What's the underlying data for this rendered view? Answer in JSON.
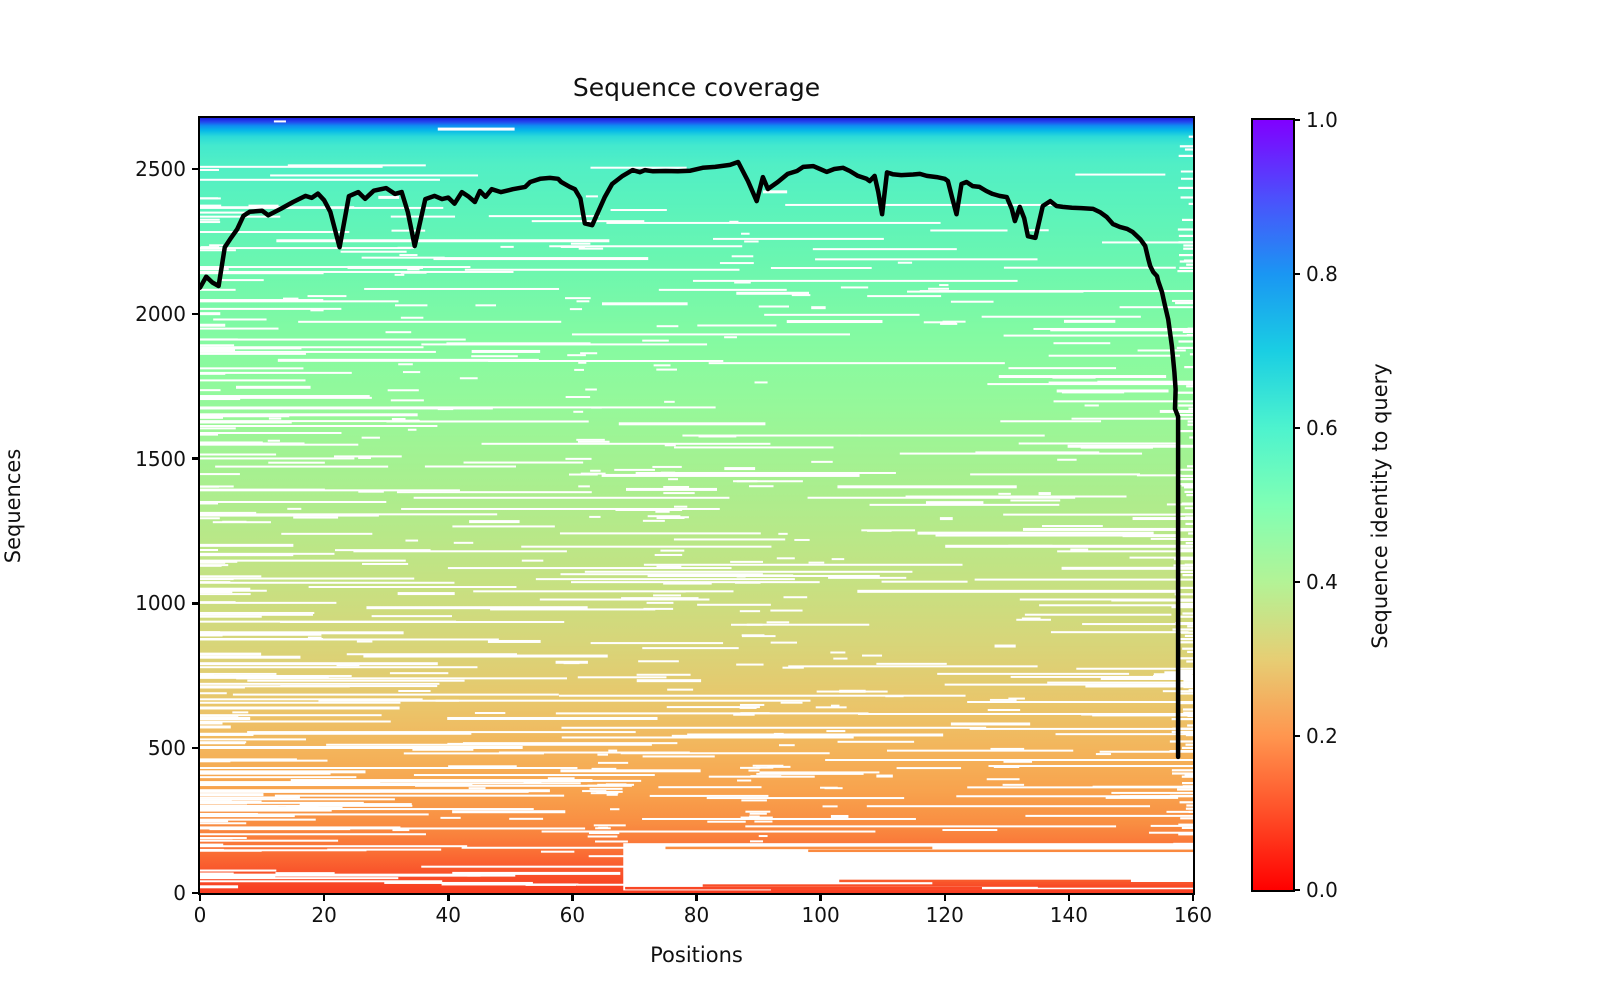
{
  "chart_data": {
    "type": "heatmap",
    "title": "Sequence coverage",
    "xlabel": "Positions",
    "ylabel": "Sequences",
    "xlim": [
      0,
      160
    ],
    "ylim": [
      0,
      2676
    ],
    "x_ticks": [
      0,
      20,
      40,
      60,
      80,
      100,
      120,
      140,
      160
    ],
    "y_ticks": [
      0,
      500,
      1000,
      1500,
      2000,
      2500
    ],
    "grid": false,
    "description": "MSA sequence coverage plot: heatmap rows are aligned sequences sorted by identity to query (rainbow colormap), white = no coverage; black line = number of sequences covering each position.",
    "heatmap_gradient_stops": [
      [
        0.0,
        "#1a1ae0"
      ],
      [
        0.005,
        "#2448ee"
      ],
      [
        0.01,
        "#0f8df2"
      ],
      [
        0.016,
        "#06b8e8"
      ],
      [
        0.024,
        "#2cdbd8"
      ],
      [
        0.035,
        "#43e9ce"
      ],
      [
        0.06,
        "#51efc5"
      ],
      [
        0.12,
        "#5cf3bb"
      ],
      [
        0.2,
        "#6ef7ae"
      ],
      [
        0.28,
        "#83faa2"
      ],
      [
        0.36,
        "#93f99b"
      ],
      [
        0.44,
        "#a3f292"
      ],
      [
        0.52,
        "#b4ea8a"
      ],
      [
        0.6,
        "#c6e182"
      ],
      [
        0.68,
        "#d8d579"
      ],
      [
        0.76,
        "#eac56a"
      ],
      [
        0.82,
        "#f4b35a"
      ],
      [
        0.87,
        "#f8a24d"
      ],
      [
        0.91,
        "#f98e42"
      ],
      [
        0.945,
        "#fa7136"
      ],
      [
        0.975,
        "#f9522a"
      ],
      [
        1.0,
        "#f83b20"
      ]
    ],
    "coverage_line": {
      "name": "sequences per position",
      "color": "#000000",
      "width": 4.5,
      "points": [
        [
          0,
          2090
        ],
        [
          1,
          2128
        ],
        [
          2,
          2108
        ],
        [
          3,
          2096
        ],
        [
          4,
          2230
        ],
        [
          5,
          2262
        ],
        [
          6,
          2292
        ],
        [
          7,
          2338
        ],
        [
          8,
          2352
        ],
        [
          10,
          2356
        ],
        [
          11,
          2340
        ],
        [
          13,
          2362
        ],
        [
          15,
          2386
        ],
        [
          17,
          2407
        ],
        [
          18,
          2400
        ],
        [
          19,
          2415
        ],
        [
          20,
          2392
        ],
        [
          21,
          2352
        ],
        [
          22.5,
          2230
        ],
        [
          24,
          2406
        ],
        [
          25.5,
          2420
        ],
        [
          26.6,
          2397
        ],
        [
          28,
          2425
        ],
        [
          30,
          2434
        ],
        [
          31.4,
          2414
        ],
        [
          32.5,
          2420
        ],
        [
          33.5,
          2350
        ],
        [
          34.6,
          2234
        ],
        [
          36.3,
          2396
        ],
        [
          37.8,
          2407
        ],
        [
          39,
          2396
        ],
        [
          40,
          2401
        ],
        [
          41,
          2380
        ],
        [
          42.2,
          2420
        ],
        [
          43.2,
          2406
        ],
        [
          44.3,
          2386
        ],
        [
          45.1,
          2424
        ],
        [
          46,
          2404
        ],
        [
          47,
          2430
        ],
        [
          48.5,
          2420
        ],
        [
          50.4,
          2430
        ],
        [
          52.4,
          2438
        ],
        [
          53.2,
          2455
        ],
        [
          54.8,
          2466
        ],
        [
          56.4,
          2469
        ],
        [
          57.7,
          2466
        ],
        [
          58.2,
          2455
        ],
        [
          59.6,
          2438
        ],
        [
          60.4,
          2430
        ],
        [
          61.3,
          2398
        ],
        [
          62,
          2312
        ],
        [
          63.2,
          2306
        ],
        [
          65.2,
          2402
        ],
        [
          66.4,
          2448
        ],
        [
          68.1,
          2476
        ],
        [
          69.7,
          2496
        ],
        [
          70.9,
          2489
        ],
        [
          71.7,
          2496
        ],
        [
          73,
          2492
        ],
        [
          75,
          2493
        ],
        [
          77,
          2492
        ],
        [
          79,
          2494
        ],
        [
          81,
          2504
        ],
        [
          83,
          2507
        ],
        [
          85.4,
          2514
        ],
        [
          86.7,
          2524
        ],
        [
          88.3,
          2458
        ],
        [
          89.7,
          2389
        ],
        [
          90.7,
          2472
        ],
        [
          91.5,
          2431
        ],
        [
          93.1,
          2455
        ],
        [
          94.7,
          2483
        ],
        [
          96.2,
          2493
        ],
        [
          97.2,
          2507
        ],
        [
          98.8,
          2510
        ],
        [
          99.9,
          2500
        ],
        [
          101,
          2490
        ],
        [
          102.2,
          2500
        ],
        [
          103.6,
          2504
        ],
        [
          104.7,
          2493
        ],
        [
          106,
          2476
        ],
        [
          107.4,
          2466
        ],
        [
          107.9,
          2458
        ],
        [
          108.7,
          2476
        ],
        [
          109.3,
          2420
        ],
        [
          109.9,
          2344
        ],
        [
          110.7,
          2488
        ],
        [
          111.6,
          2482
        ],
        [
          113,
          2479
        ],
        [
          114.9,
          2481
        ],
        [
          116,
          2483
        ],
        [
          117.1,
          2476
        ],
        [
          118.7,
          2472
        ],
        [
          120,
          2466
        ],
        [
          120.5,
          2458
        ],
        [
          121.2,
          2400
        ],
        [
          121.9,
          2344
        ],
        [
          122.7,
          2448
        ],
        [
          123.5,
          2455
        ],
        [
          124.5,
          2441
        ],
        [
          125.6,
          2438
        ],
        [
          126.7,
          2424
        ],
        [
          127.7,
          2414
        ],
        [
          128.8,
          2407
        ],
        [
          130,
          2403
        ],
        [
          130.8,
          2362
        ],
        [
          131.3,
          2320
        ],
        [
          132.1,
          2369
        ],
        [
          132.8,
          2330
        ],
        [
          133.4,
          2268
        ],
        [
          134.6,
          2262
        ],
        [
          135.8,
          2372
        ],
        [
          137,
          2389
        ],
        [
          138,
          2372
        ],
        [
          139,
          2369
        ],
        [
          140.5,
          2366
        ],
        [
          142,
          2365
        ],
        [
          143.9,
          2362
        ],
        [
          145,
          2351
        ],
        [
          146.1,
          2334
        ],
        [
          147.1,
          2310
        ],
        [
          148.2,
          2300
        ],
        [
          149.4,
          2293
        ],
        [
          150.3,
          2282
        ],
        [
          151.5,
          2258
        ],
        [
          152.3,
          2234
        ],
        [
          152.8,
          2189
        ],
        [
          153.1,
          2165
        ],
        [
          153.6,
          2144
        ],
        [
          154.2,
          2130
        ],
        [
          154.4,
          2113
        ],
        [
          155,
          2075
        ],
        [
          155.5,
          2026
        ],
        [
          156,
          1981
        ],
        [
          156.6,
          1888
        ],
        [
          157,
          1798
        ],
        [
          157.2,
          1739
        ],
        [
          157.1,
          1672
        ],
        [
          157.6,
          1645
        ],
        [
          157.6,
          470
        ]
      ]
    },
    "gap_pattern": {
      "seed": 1337,
      "streaks": 560,
      "gap_color": "#ffffff",
      "clusters": [
        {
          "pos": 33.5,
          "seq_hi": 2300,
          "seq_lo": 1600,
          "n": 14
        },
        {
          "pos": 61.5,
          "seq_hi": 2250,
          "seq_lo": 1500,
          "n": 12
        },
        {
          "pos": 63.0,
          "seq_hi": 1700,
          "seq_lo": 1100,
          "n": 8
        },
        {
          "pos": 74.5,
          "seq_hi": 2050,
          "seq_lo": 900,
          "n": 16
        },
        {
          "pos": 76.0,
          "seq_hi": 1500,
          "seq_lo": 600,
          "n": 10
        },
        {
          "pos": 87.5,
          "seq_hi": 2350,
          "seq_lo": 2050,
          "n": 6
        },
        {
          "pos": 88.5,
          "seq_hi": 1150,
          "seq_lo": 300,
          "n": 14
        },
        {
          "pos": 94.5,
          "seq_hi": 1300,
          "seq_lo": 400,
          "n": 12
        },
        {
          "pos": 102.5,
          "seq_hi": 900,
          "seq_lo": 350,
          "n": 8
        },
        {
          "pos": 120.5,
          "seq_hi": 2200,
          "seq_lo": 1900,
          "n": 5
        },
        {
          "pos": 131.0,
          "seq_hi": 800,
          "seq_lo": 250,
          "n": 8
        },
        {
          "pos": 66.0,
          "seq_hi": 500,
          "seq_lo": 150,
          "n": 18
        },
        {
          "pos": 90.0,
          "seq_hi": 450,
          "seq_lo": 120,
          "n": 14
        }
      ],
      "features": {
        "white_rect": {
          "pos1": 68.2,
          "pos2": 160,
          "seq_hi": 172,
          "seq_lo": 9
        },
        "colored_lines": [
          {
            "seq": 150,
            "p1": 98,
            "p2": 160,
            "color": "#fa8a40"
          },
          {
            "seq": 160,
            "p1": 75,
            "p2": 118,
            "color": "#fa8f43"
          },
          {
            "seq": 46,
            "p1": 103,
            "p2": 150,
            "color": "#f95b2d"
          },
          {
            "seq": 38,
            "p1": 118,
            "p2": 160,
            "color": "#f9532a"
          },
          {
            "seq": 30,
            "p1": 81,
            "p2": 160,
            "color": "#f94d27"
          },
          {
            "seq": 27,
            "p1": 135,
            "p2": 160,
            "color": "#f94b26"
          },
          {
            "seq": 21,
            "p1": 68.5,
            "p2": 126,
            "color": "#f94725"
          },
          {
            "seq": 13,
            "p1": 92,
            "p2": 160,
            "color": "#f94122"
          }
        ]
      }
    }
  },
  "colorbar": {
    "label": "Sequence identity to query",
    "tick_labels": [
      "1.0",
      "0.8",
      "0.6",
      "0.4",
      "0.2",
      "0.0"
    ],
    "tick_values": [
      1.0,
      0.8,
      0.6,
      0.4,
      0.2,
      0.0
    ],
    "stops": [
      [
        1.0,
        "#8000ff"
      ],
      [
        0.9,
        "#4d4ffc"
      ],
      [
        0.8,
        "#1a96f3"
      ],
      [
        0.7,
        "#1acee3"
      ],
      [
        0.6,
        "#4df3ce"
      ],
      [
        0.5,
        "#80ffb4"
      ],
      [
        0.4,
        "#b3f396"
      ],
      [
        0.3,
        "#e6ce74"
      ],
      [
        0.2,
        "#ff964f"
      ],
      [
        0.1,
        "#ff4f28"
      ],
      [
        0.0,
        "#ff0000"
      ]
    ]
  }
}
